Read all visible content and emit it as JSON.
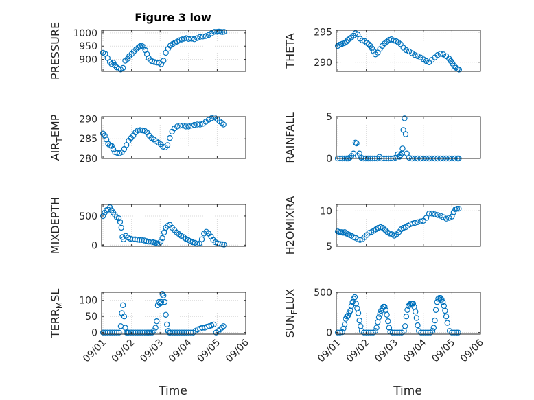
{
  "figure": {
    "title": "Figure 3 low",
    "xlabel": "Time",
    "marker_color": "#0072bd",
    "xticks": [
      "09/01",
      "09/02",
      "09/03",
      "09/04",
      "09/05",
      "09/06"
    ]
  },
  "chart_data": [
    {
      "type": "scatter",
      "ylabel": "PRESSURE",
      "ylim": [
        855,
        1010
      ],
      "yticks": [
        900,
        950,
        1000
      ],
      "x": [
        0.0,
        0.08,
        0.16,
        0.24,
        0.3,
        0.36,
        0.42,
        0.48,
        0.55,
        0.62,
        0.7,
        0.78,
        0.86,
        0.92,
        1.0,
        1.08,
        1.16,
        1.24,
        1.3,
        1.36,
        1.42,
        1.48,
        1.54,
        1.6,
        1.66,
        1.72,
        1.8,
        1.88,
        1.96,
        2.04,
        2.12,
        2.2,
        2.28,
        2.36,
        2.44,
        2.52,
        2.6,
        2.68,
        2.76,
        2.84,
        2.92,
        3.0,
        3.1,
        3.2,
        3.3,
        3.4,
        3.5,
        3.6,
        3.7,
        3.8,
        3.9,
        4.0,
        4.06,
        4.12,
        4.18,
        4.24
      ],
      "y": [
        925,
        921,
        905,
        890,
        883,
        888,
        878,
        870,
        865,
        862,
        868,
        895,
        902,
        912,
        920,
        930,
        938,
        945,
        950,
        951,
        947,
        935,
        920,
        905,
        897,
        893,
        890,
        888,
        887,
        882,
        895,
        925,
        940,
        952,
        958,
        963,
        967,
        972,
        975,
        978,
        980,
        977,
        978,
        976,
        980,
        985,
        986,
        988,
        992,
        998,
        1004,
        1004,
        1005,
        1004,
        1003,
        1004
      ]
    },
    {
      "type": "scatter",
      "ylabel": "THETA",
      "ylim": [
        288.5,
        295.3
      ],
      "yticks": [
        290,
        295
      ],
      "x": [
        0.0,
        0.06,
        0.12,
        0.18,
        0.24,
        0.3,
        0.36,
        0.42,
        0.48,
        0.55,
        0.62,
        0.7,
        0.78,
        0.86,
        0.94,
        1.02,
        1.08,
        1.14,
        1.2,
        1.26,
        1.32,
        1.4,
        1.48,
        1.56,
        1.64,
        1.72,
        1.8,
        1.88,
        1.96,
        2.04,
        2.12,
        2.2,
        2.3,
        2.4,
        2.5,
        2.6,
        2.7,
        2.8,
        2.9,
        3.0,
        3.1,
        3.2,
        3.3,
        3.4,
        3.5,
        3.6,
        3.7,
        3.8,
        3.9,
        3.96,
        4.02,
        4.08,
        4.14,
        4.2,
        4.25
      ],
      "y": [
        292.7,
        292.9,
        293.0,
        293.1,
        293.2,
        293.4,
        293.7,
        293.9,
        294.1,
        294.4,
        294.8,
        294.6,
        293.9,
        293.6,
        293.5,
        293.2,
        293.0,
        292.7,
        292.3,
        291.8,
        291.3,
        291.6,
        292.2,
        292.7,
        293.1,
        293.4,
        293.7,
        293.8,
        293.6,
        293.5,
        293.3,
        293.0,
        292.4,
        292.0,
        291.8,
        291.5,
        291.2,
        291.0,
        290.8,
        290.5,
        290.2,
        290.0,
        290.4,
        290.8,
        291.2,
        291.4,
        291.3,
        291.0,
        290.6,
        290.2,
        289.8,
        289.4,
        289.1,
        288.9,
        288.8
      ]
    },
    {
      "type": "scatter",
      "ylabel": "AIR_TEMP",
      "ylim": [
        280,
        290.6
      ],
      "yticks": [
        280,
        285,
        290
      ],
      "x": [
        0.0,
        0.06,
        0.12,
        0.18,
        0.24,
        0.3,
        0.36,
        0.42,
        0.5,
        0.58,
        0.66,
        0.74,
        0.82,
        0.9,
        0.98,
        1.06,
        1.14,
        1.22,
        1.3,
        1.38,
        1.46,
        1.54,
        1.62,
        1.7,
        1.78,
        1.86,
        1.94,
        2.02,
        2.1,
        2.18,
        2.26,
        2.34,
        2.42,
        2.5,
        2.6,
        2.7,
        2.8,
        2.9,
        3.0,
        3.1,
        3.2,
        3.3,
        3.4,
        3.5,
        3.6,
        3.7,
        3.8,
        3.9,
        4.0,
        4.08,
        4.16,
        4.22
      ],
      "y": [
        286.3,
        285.8,
        284.8,
        283.7,
        283.3,
        283.2,
        282.4,
        281.6,
        281.4,
        281.3,
        281.6,
        282.4,
        283.4,
        284.5,
        285.2,
        285.8,
        286.6,
        287.1,
        287.2,
        287.1,
        287.0,
        286.6,
        285.8,
        285.2,
        284.8,
        284.4,
        284.0,
        283.6,
        283.0,
        282.8,
        283.4,
        285.2,
        286.8,
        287.6,
        288.1,
        288.3,
        288.3,
        288.1,
        288.1,
        288.3,
        288.5,
        288.6,
        288.6,
        288.8,
        289.3,
        289.8,
        290.2,
        290.4,
        290.0,
        289.4,
        289.0,
        288.6
      ]
    },
    {
      "type": "scatter",
      "ylabel": "RAINFALL",
      "ylim": [
        0,
        5
      ],
      "yticks": [
        0,
        5
      ],
      "x": [
        0.0,
        0.08,
        0.16,
        0.24,
        0.3,
        0.36,
        0.42,
        0.48,
        0.55,
        0.62,
        0.66,
        0.7,
        0.76,
        0.82,
        0.9,
        0.98,
        1.06,
        1.14,
        1.22,
        1.3,
        1.38,
        1.46,
        1.54,
        1.62,
        1.7,
        1.78,
        1.86,
        1.94,
        2.02,
        2.1,
        2.16,
        2.2,
        2.24,
        2.27,
        2.3,
        2.34,
        2.38,
        2.42,
        2.5,
        2.6,
        2.7,
        2.8,
        2.9,
        3.0,
        3.1,
        3.2,
        3.3,
        3.4,
        3.5,
        3.6,
        3.7,
        3.8,
        3.9,
        4.0,
        4.1,
        4.2,
        4.24
      ],
      "y": [
        0,
        0,
        0,
        0,
        0,
        0,
        0.1,
        0.3,
        0.6,
        1.9,
        1.8,
        0.3,
        0.6,
        0.1,
        0,
        0,
        0,
        0,
        0,
        0,
        0,
        0.2,
        0,
        0,
        0,
        0,
        0,
        0,
        0.1,
        0.5,
        0.2,
        0.4,
        0.6,
        1.2,
        3.4,
        4.8,
        2.9,
        0.6,
        0.1,
        0,
        0,
        0,
        0,
        0,
        0,
        0,
        0,
        0,
        0,
        0,
        0,
        0,
        0,
        0,
        0,
        0,
        0
      ]
    },
    {
      "type": "scatter",
      "ylabel": "MIXDEPTH",
      "ylim": [
        -20,
        700
      ],
      "yticks": [
        0,
        500
      ],
      "x": [
        0.0,
        0.06,
        0.12,
        0.18,
        0.24,
        0.3,
        0.36,
        0.42,
        0.48,
        0.55,
        0.6,
        0.64,
        0.68,
        0.72,
        0.8,
        0.88,
        0.96,
        1.04,
        1.12,
        1.2,
        1.28,
        1.36,
        1.44,
        1.52,
        1.6,
        1.68,
        1.76,
        1.84,
        1.9,
        1.96,
        2.02,
        2.08,
        2.14,
        2.2,
        2.26,
        2.34,
        2.42,
        2.5,
        2.58,
        2.66,
        2.74,
        2.82,
        2.9,
        2.98,
        3.06,
        3.14,
        3.22,
        3.3,
        3.38,
        3.46,
        3.54,
        3.62,
        3.7,
        3.78,
        3.86,
        3.94,
        4.02,
        4.1,
        4.18,
        4.24
      ],
      "y": [
        500,
        560,
        600,
        610,
        650,
        600,
        560,
        520,
        480,
        460,
        400,
        300,
        140,
        100,
        160,
        130,
        110,
        100,
        100,
        95,
        90,
        90,
        80,
        70,
        60,
        60,
        50,
        40,
        30,
        20,
        60,
        120,
        220,
        300,
        330,
        350,
        300,
        260,
        220,
        190,
        160,
        140,
        110,
        90,
        70,
        50,
        40,
        20,
        30,
        100,
        200,
        230,
        200,
        150,
        90,
        50,
        30,
        20,
        15,
        10
      ]
    },
    {
      "type": "scatter",
      "ylabel": "H2OMIXRA",
      "ylim": [
        5,
        10.9
      ],
      "yticks": [
        5,
        10
      ],
      "x": [
        0.0,
        0.06,
        0.12,
        0.18,
        0.24,
        0.3,
        0.36,
        0.42,
        0.48,
        0.55,
        0.62,
        0.7,
        0.78,
        0.86,
        0.94,
        1.02,
        1.1,
        1.18,
        1.26,
        1.34,
        1.42,
        1.5,
        1.58,
        1.66,
        1.74,
        1.82,
        1.9,
        1.98,
        2.06,
        2.14,
        2.22,
        2.3,
        2.38,
        2.46,
        2.54,
        2.62,
        2.7,
        2.8,
        2.9,
        3.0,
        3.1,
        3.2,
        3.3,
        3.4,
        3.5,
        3.6,
        3.7,
        3.8,
        3.9,
        4.0,
        4.06,
        4.12,
        4.18,
        4.24
      ],
      "y": [
        7.1,
        7.0,
        7.0,
        6.9,
        7.0,
        6.8,
        6.7,
        6.6,
        6.5,
        6.3,
        6.2,
        6.0,
        5.9,
        6.0,
        6.3,
        6.6,
        6.9,
        7.0,
        7.2,
        7.4,
        7.6,
        7.7,
        7.6,
        7.3,
        7.0,
        6.8,
        6.7,
        6.5,
        6.7,
        7.0,
        7.4,
        7.6,
        7.7,
        7.9,
        8.1,
        8.2,
        8.3,
        8.4,
        8.5,
        8.6,
        9.0,
        9.6,
        9.6,
        9.5,
        9.4,
        9.3,
        9.1,
        8.9,
        9.0,
        9.2,
        9.8,
        10.2,
        10.3,
        10.3
      ]
    },
    {
      "type": "scatter",
      "ylabel": "TERR_MSL",
      "ylim": [
        -5,
        125
      ],
      "yticks": [
        0,
        50,
        100
      ],
      "x": [
        0.0,
        0.08,
        0.16,
        0.24,
        0.32,
        0.4,
        0.48,
        0.56,
        0.62,
        0.66,
        0.7,
        0.74,
        0.78,
        0.82,
        0.86,
        0.9,
        0.98,
        1.06,
        1.14,
        1.22,
        1.3,
        1.38,
        1.46,
        1.54,
        1.6,
        1.66,
        1.72,
        1.78,
        1.84,
        1.88,
        1.92,
        1.96,
        2.0,
        2.04,
        2.08,
        2.12,
        2.16,
        2.2,
        2.24,
        2.28,
        2.32,
        2.36,
        2.44,
        2.52,
        2.6,
        2.68,
        2.76,
        2.84,
        2.92,
        3.0,
        3.08,
        3.16,
        3.24,
        3.32,
        3.4,
        3.48,
        3.56,
        3.64,
        3.72,
        3.8,
        3.88,
        3.96,
        4.04,
        4.1,
        4.16,
        4.22
      ],
      "y": [
        0,
        0,
        0,
        0,
        0,
        0,
        0,
        0,
        20,
        60,
        85,
        50,
        15,
        0,
        0,
        0,
        0,
        0,
        0,
        0,
        0,
        0,
        0,
        0,
        0,
        0,
        0,
        5,
        15,
        35,
        85,
        95,
        90,
        95,
        120,
        115,
        95,
        55,
        25,
        5,
        0,
        0,
        0,
        0,
        0,
        0,
        0,
        0,
        0,
        0,
        0,
        0,
        5,
        10,
        12,
        15,
        15,
        18,
        20,
        22,
        25,
        0,
        5,
        10,
        15,
        20
      ]
    },
    {
      "type": "scatter",
      "ylabel": "SUN_FLUX",
      "ylim": [
        -20,
        500
      ],
      "yticks": [
        0,
        500
      ],
      "x": [
        0.0,
        0.08,
        0.16,
        0.2,
        0.24,
        0.28,
        0.32,
        0.36,
        0.4,
        0.44,
        0.48,
        0.52,
        0.56,
        0.6,
        0.64,
        0.68,
        0.72,
        0.76,
        0.8,
        0.84,
        0.92,
        1.0,
        1.08,
        1.16,
        1.24,
        1.32,
        1.36,
        1.4,
        1.44,
        1.48,
        1.52,
        1.56,
        1.6,
        1.64,
        1.68,
        1.72,
        1.76,
        1.8,
        1.84,
        1.92,
        2.0,
        2.08,
        2.16,
        2.24,
        2.32,
        2.36,
        2.4,
        2.44,
        2.48,
        2.52,
        2.56,
        2.6,
        2.64,
        2.68,
        2.72,
        2.76,
        2.8,
        2.84,
        2.92,
        3.0,
        3.08,
        3.16,
        3.24,
        3.32,
        3.36,
        3.4,
        3.44,
        3.48,
        3.52,
        3.56,
        3.6,
        3.64,
        3.68,
        3.72,
        3.76,
        3.8,
        3.84,
        3.92,
        4.0,
        4.08,
        4.16,
        4.22
      ],
      "y": [
        0,
        0,
        5,
        50,
        100,
        170,
        200,
        210,
        240,
        270,
        330,
        380,
        420,
        440,
        360,
        300,
        240,
        150,
        80,
        20,
        0,
        0,
        0,
        0,
        0,
        20,
        60,
        130,
        190,
        230,
        270,
        300,
        320,
        320,
        280,
        220,
        140,
        60,
        10,
        0,
        0,
        0,
        0,
        0,
        20,
        80,
        200,
        280,
        330,
        350,
        360,
        360,
        360,
        320,
        260,
        180,
        90,
        20,
        0,
        0,
        0,
        0,
        0,
        20,
        60,
        150,
        280,
        380,
        420,
        430,
        430,
        410,
        380,
        330,
        270,
        200,
        120,
        20,
        0,
        0,
        0,
        0
      ]
    }
  ]
}
